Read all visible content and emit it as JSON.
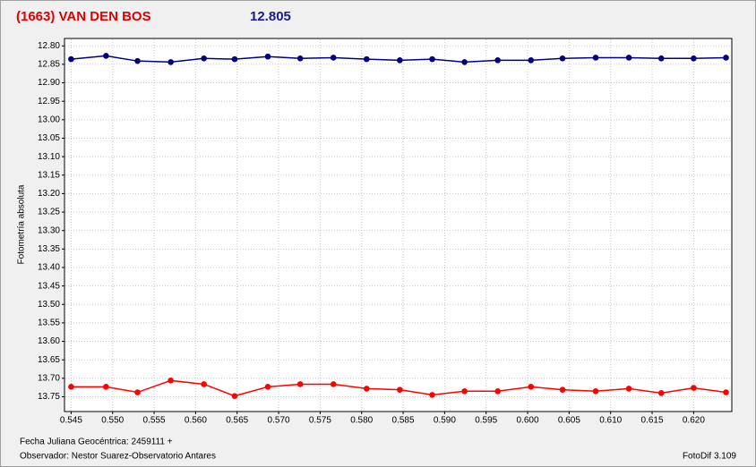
{
  "chart_data": {
    "type": "line",
    "title": "(1663) VAN DEN BOS",
    "subtitle": "12.805",
    "y_label": "Fotometría absoluta",
    "x_label": "Fecha Juliana Geocéntrica: 2459111 +",
    "observer": "Observador: Nestor Suarez-Observatorio Antares",
    "software": "FotoDif 3.109",
    "grid": true,
    "y_inverted": true,
    "xlim": [
      0.5442,
      0.6246
    ],
    "ylim": [
      12.78,
      13.79
    ],
    "xticks": [
      0.545,
      {
        "value": 0.55,
        "label": "0.550"
      },
      0.555,
      {
        "value": 0.56,
        "label": "0.560"
      },
      0.565,
      {
        "value": 0.57,
        "label": "0.570"
      },
      0.575,
      {
        "value": 0.58,
        "label": "0.580"
      },
      0.585,
      {
        "value": 0.59,
        "label": "0.590"
      },
      0.595,
      {
        "value": 0.6,
        "label": "0.600"
      },
      0.605,
      {
        "value": 0.61,
        "label": "0.610"
      },
      0.615,
      {
        "value": 0.62,
        "label": "0.620"
      }
    ],
    "yticks": [
      {
        "value": 12.8,
        "label": "12.80"
      },
      12.85,
      {
        "value": 12.9,
        "label": "12.90"
      },
      12.95,
      {
        "value": 13,
        "label": "13.00"
      },
      13.05,
      {
        "value": 13.1,
        "label": "13.10"
      },
      13.15,
      {
        "value": 13.2,
        "label": "13.20"
      },
      13.25,
      {
        "value": 13.3,
        "label": "13.30"
      },
      13.35,
      {
        "value": 13.4,
        "label": "13.40"
      },
      13.45,
      {
        "value": 13.5,
        "label": "13.50"
      },
      13.55,
      {
        "value": 13.6,
        "label": "13.60"
      },
      13.65,
      {
        "value": 13.7,
        "label": "13.70"
      },
      13.75
    ],
    "x": [
      0.545,
      0.5492,
      0.553,
      0.557,
      0.561,
      0.5647,
      0.5687,
      0.5726,
      0.5766,
      0.5806,
      0.5846,
      0.5885,
      0.5924,
      0.5964,
      0.6004,
      0.6042,
      0.6082,
      0.6122,
      0.6161,
      0.62,
      0.6239
    ],
    "series": [
      {
        "color": "#000080",
        "values": [
          12.836,
          12.827,
          12.841,
          12.844,
          12.834,
          12.836,
          12.829,
          12.834,
          12.832,
          12.836,
          12.839,
          12.836,
          12.844,
          12.839,
          12.839,
          12.834,
          12.832,
          12.832,
          12.834,
          12.834,
          12.832
        ]
      },
      {
        "color": "#ff0000",
        "values": [
          13.723,
          13.723,
          13.738,
          13.706,
          13.716,
          13.748,
          13.723,
          13.716,
          13.716,
          13.728,
          13.731,
          13.745,
          13.735,
          13.735,
          13.723,
          13.731,
          13.735,
          13.728,
          13.74,
          13.726,
          13.738
        ]
      }
    ]
  }
}
